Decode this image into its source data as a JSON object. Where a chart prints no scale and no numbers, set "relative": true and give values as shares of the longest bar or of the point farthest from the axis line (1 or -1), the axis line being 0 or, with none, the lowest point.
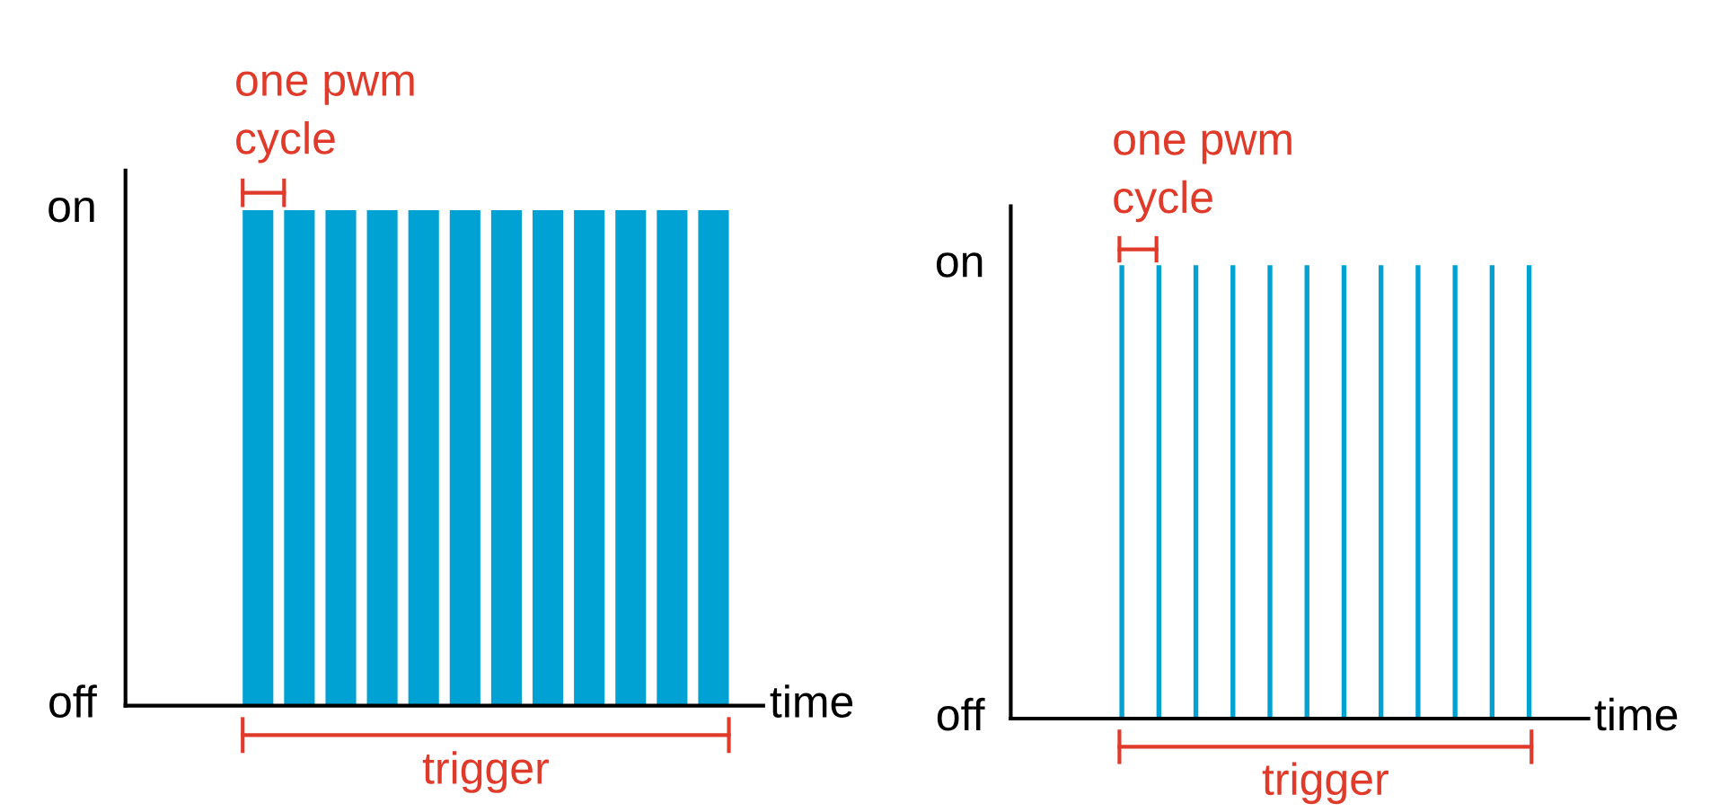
{
  "chart_data": [
    {
      "type": "bar",
      "relative": true,
      "categories": [
        null,
        null,
        null,
        null,
        null,
        null,
        null,
        null,
        null,
        null,
        null,
        null
      ],
      "values": [
        1,
        1,
        1,
        1,
        1,
        1,
        1,
        1,
        1,
        1,
        1,
        1
      ],
      "color": "#00a2d3",
      "xlabel": "time",
      "annotations": [
        "on",
        "off",
        "one pwm\ncycle",
        "trigger"
      ],
      "grid": false,
      "legend": false
    },
    {
      "type": "bar",
      "relative": true,
      "categories": [
        null,
        null,
        null,
        null,
        null,
        null,
        null,
        null,
        null,
        null,
        null,
        null
      ],
      "values": [
        1,
        1,
        1,
        1,
        1,
        1,
        1,
        1,
        1,
        1,
        1,
        1
      ],
      "color": "#00a2d3",
      "xlabel": "time",
      "annotations": [
        "on",
        "off",
        "one pwm\ncycle",
        "trigger"
      ],
      "grid": false,
      "legend": false
    }
  ]
}
